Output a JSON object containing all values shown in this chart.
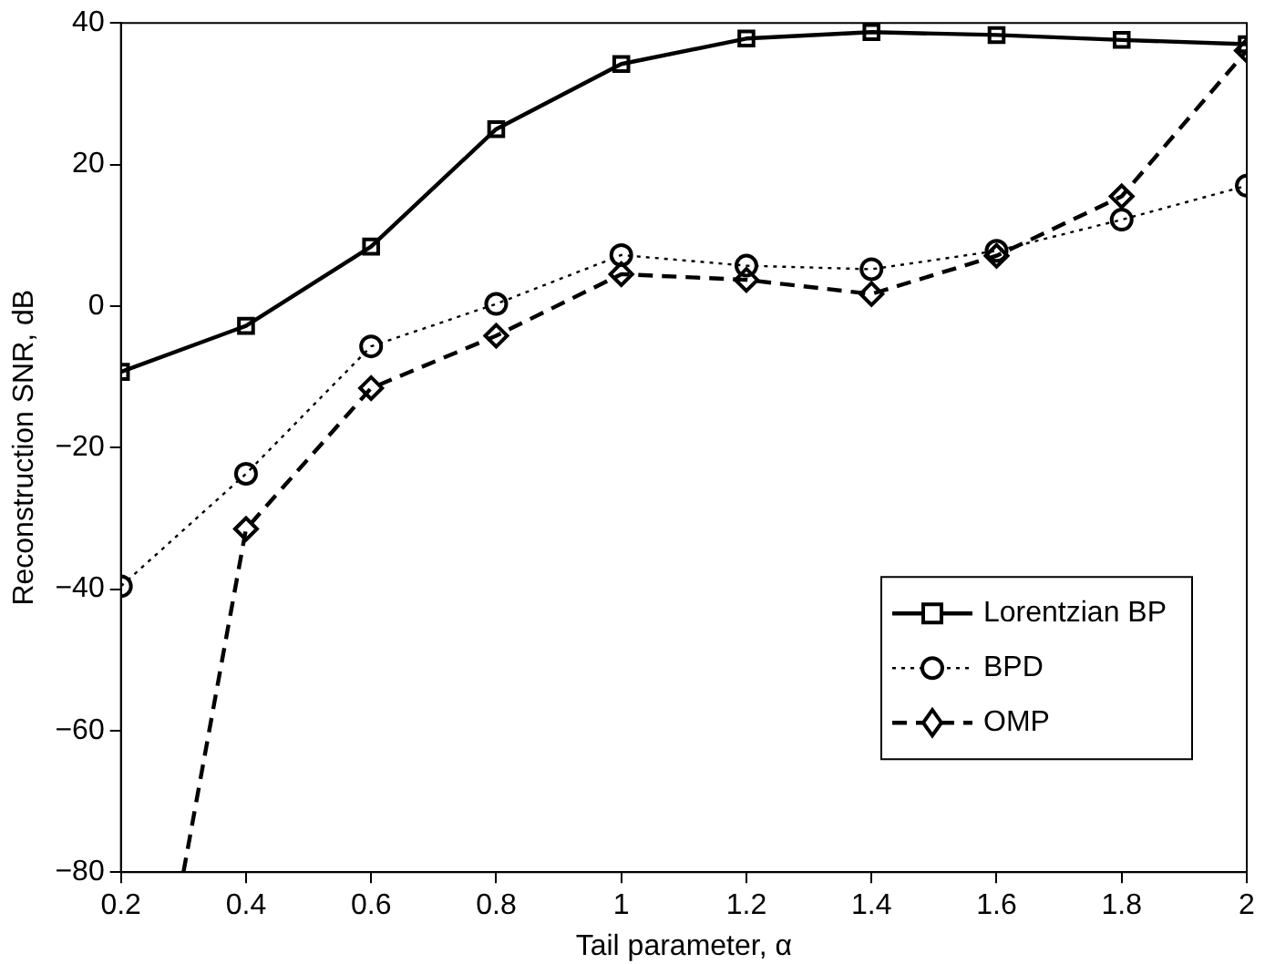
{
  "chart_data": {
    "type": "line",
    "xlabel": "Tail parameter, α",
    "ylabel": "Reconstruction SNR, dB",
    "x": [
      0.2,
      0.4,
      0.6,
      0.8,
      1,
      1.2,
      1.4,
      1.6,
      1.8,
      2
    ],
    "xlim": [
      0.2,
      2
    ],
    "xticks": [
      0.2,
      0.4,
      0.6,
      0.8,
      1,
      1.2,
      1.4,
      1.6,
      1.8,
      2
    ],
    "ylim": [
      -80,
      40
    ],
    "yticks": [
      -80,
      -60,
      -40,
      -20,
      0,
      20,
      40
    ],
    "grid": false,
    "legend": "bottom right",
    "series": [
      {
        "name": "Lorentzian BP",
        "color": "#000000",
        "marker": "square",
        "line_style": "solid",
        "values": [
          -9.3,
          -2.8,
          8.4,
          25,
          34.2,
          37.8,
          38.7,
          38.3,
          37.6,
          37
        ]
      },
      {
        "name": "BPD",
        "color": "#000000",
        "marker": "circle",
        "line_style": "dotted",
        "values": [
          -39.6,
          -23.7,
          -5.7,
          0.3,
          7.2,
          5.7,
          5.2,
          7.8,
          12.2,
          17
        ]
      },
      {
        "name": "OMP",
        "color": "#000000",
        "marker": "diamond",
        "line_style": "dashed",
        "x": [
          0.3,
          0.4,
          0.6,
          0.8,
          1,
          1.2,
          1.4,
          1.6,
          1.8,
          2
        ],
        "values": [
          -80,
          -31.5,
          -11.6,
          -4.2,
          4.5,
          3.7,
          1.7,
          7.1,
          15.5,
          36.1
        ]
      }
    ]
  }
}
